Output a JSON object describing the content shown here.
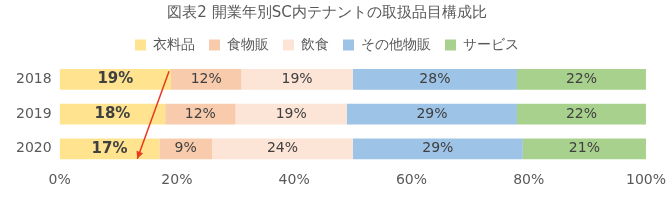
{
  "chart_data": {
    "type": "bar",
    "title": "図表2 開業年別SC内テナントの取扱品目構成比",
    "orientation": "horizontal",
    "stacked": true,
    "data_labels": true,
    "grid": false,
    "legend": "top",
    "categories": [
      "2018",
      "2019",
      "2020"
    ],
    "series": [
      {
        "name": "衣料品",
        "color": "#ffe38f",
        "values": [
          19,
          18,
          17
        ],
        "value_labels": [
          "19%",
          "18%",
          "17%"
        ]
      },
      {
        "name": "食物販",
        "color": "#f8cbad",
        "values": [
          12,
          12,
          9
        ],
        "value_labels": [
          "12%",
          "12%",
          "9%"
        ]
      },
      {
        "name": "飲食",
        "color": "#fce4d6",
        "values": [
          19,
          19,
          24
        ],
        "value_labels": [
          "19%",
          "19%",
          "24%"
        ]
      },
      {
        "name": "その他物販",
        "color": "#9dc3e6",
        "values": [
          28,
          29,
          29
        ],
        "value_labels": [
          "28%",
          "29%",
          "29%"
        ]
      },
      {
        "name": "サービス",
        "color": "#a9d18e",
        "values": [
          22,
          22,
          21
        ],
        "value_labels": [
          "22%",
          "22%",
          "21%"
        ]
      }
    ],
    "xlim": [
      0,
      100
    ],
    "xticks": [
      {
        "value": 0,
        "label": "0%"
      },
      {
        "value": 20,
        "label": "20%"
      },
      {
        "value": 40,
        "label": "40%"
      },
      {
        "value": 60,
        "label": "60%"
      },
      {
        "value": 80,
        "label": "80%"
      },
      {
        "value": 100,
        "label": "100%"
      }
    ]
  }
}
